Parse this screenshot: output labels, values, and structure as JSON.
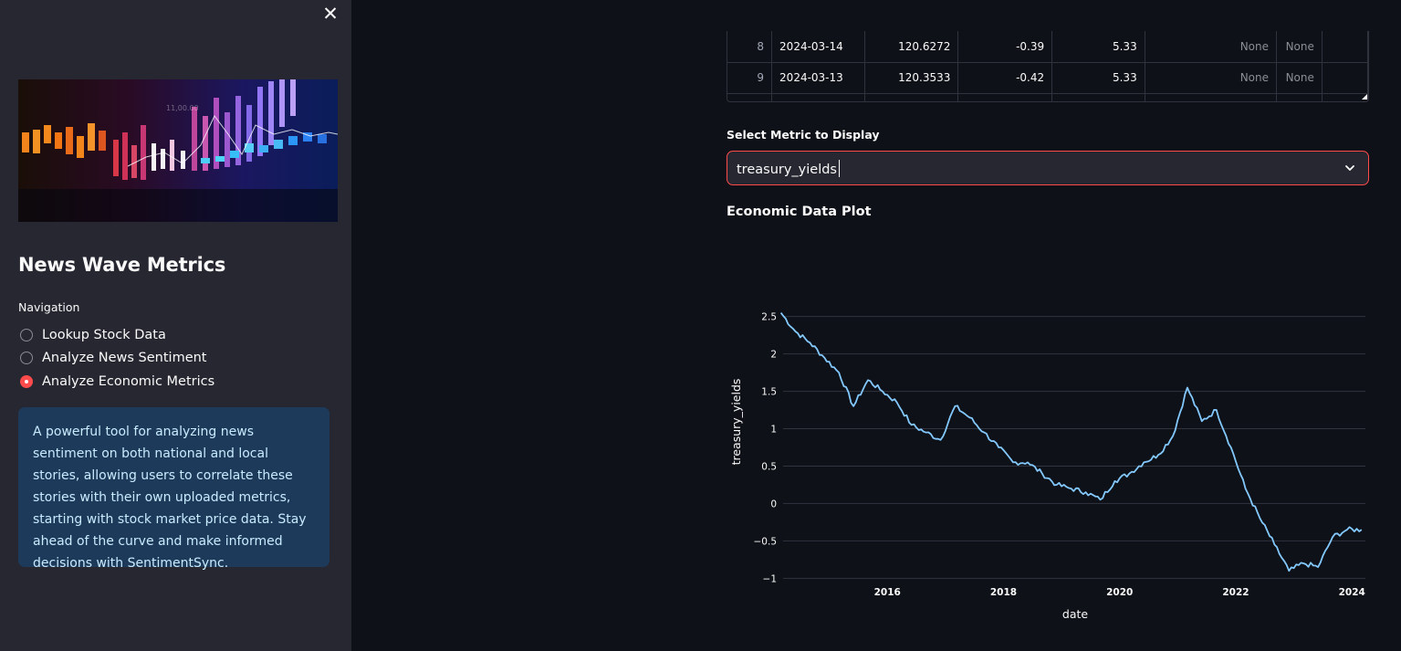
{
  "sidebar": {
    "close_icon": "close-icon",
    "hero_image": "financial-chart-image",
    "title": "News Wave Metrics",
    "nav_label": "Navigation",
    "nav_items": [
      {
        "label": "Lookup Stock Data",
        "selected": false
      },
      {
        "label": "Analyze News Sentiment",
        "selected": false
      },
      {
        "label": "Analyze Economic Metrics",
        "selected": true
      }
    ],
    "info_text": "A powerful tool for analyzing news sentiment on both national and local stories, allowing users to correlate these stories with their own uploaded metrics, starting with stock market price data. Stay ahead of the curve and make informed decisions with SentimentSync."
  },
  "table": {
    "rows": [
      {
        "index": "8",
        "date": "2024-03-14",
        "c1": "120.6272",
        "c2": "-0.39",
        "c3": "5.33",
        "c4": "None",
        "c5": "None"
      },
      {
        "index": "9",
        "date": "2024-03-13",
        "c1": "120.3533",
        "c2": "-0.42",
        "c3": "5.33",
        "c4": "None",
        "c5": "None"
      }
    ]
  },
  "select": {
    "label": "Select Metric to Display",
    "value": "treasury_yields",
    "chevron_icon": "chevron-down-icon"
  },
  "plot_title": "Economic Data Plot",
  "colors": {
    "accent": "#ff4b4b",
    "line": "#83c9ff",
    "info_bg": "#1e3a5a",
    "info_text": "#c7ebff"
  },
  "chart_data": {
    "type": "line",
    "title": "",
    "xlabel": "date",
    "ylabel": "treasury_yields",
    "x_ticks": [
      "2016",
      "2018",
      "2020",
      "2022",
      "2024"
    ],
    "y_ticks": [
      "2.5",
      "2",
      "1.5",
      "1",
      "0.5",
      "0",
      "−0.5",
      "−1"
    ],
    "xlim": [
      "2014-03-15",
      "2024-03-25"
    ],
    "ylim": [
      -1.13,
      2.63
    ],
    "grid": true,
    "legend": "none",
    "series": [
      {
        "x": [
          "2014-03",
          "2014-06",
          "2014-09",
          "2014-12",
          "2015-03",
          "2015-06",
          "2015-09",
          "2015-12",
          "2016-03",
          "2016-06",
          "2016-09",
          "2016-12",
          "2017-03",
          "2017-06",
          "2017-09",
          "2017-12",
          "2018-03",
          "2018-06",
          "2018-09",
          "2018-12",
          "2019-03",
          "2019-06",
          "2019-09",
          "2019-12",
          "2020-03",
          "2020-06",
          "2020-09",
          "2020-12",
          "2021-03",
          "2021-06",
          "2021-09",
          "2021-12",
          "2022-03",
          "2022-06",
          "2022-09",
          "2022-12",
          "2023-03",
          "2023-06",
          "2023-09",
          "2023-12",
          "2024-03"
        ],
        "y": [
          2.55,
          2.3,
          2.15,
          1.95,
          1.75,
          1.3,
          1.65,
          1.5,
          1.35,
          1.05,
          0.95,
          0.85,
          1.3,
          1.15,
          0.95,
          0.75,
          0.55,
          0.55,
          0.4,
          0.25,
          0.2,
          0.15,
          0.05,
          0.3,
          0.4,
          0.55,
          0.65,
          0.9,
          1.55,
          1.1,
          1.25,
          0.75,
          0.2,
          -0.2,
          -0.55,
          -0.9,
          -0.8,
          -0.85,
          -0.45,
          -0.35,
          -0.35
        ]
      }
    ]
  }
}
